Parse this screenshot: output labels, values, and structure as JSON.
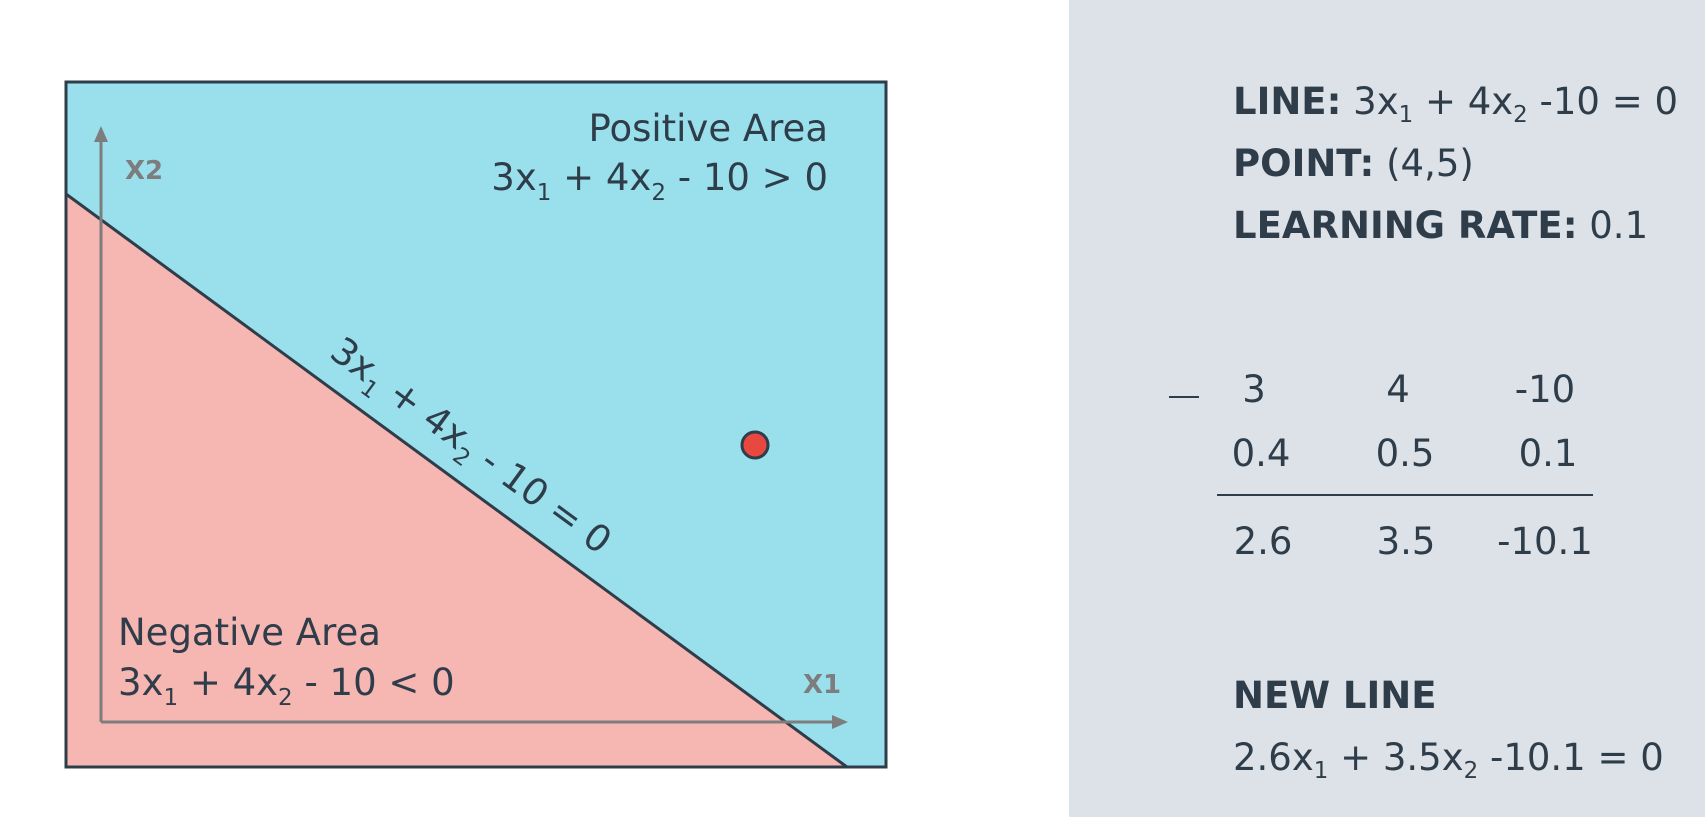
{
  "diagram": {
    "positive_area": {
      "title": "Positive Area",
      "eq_a": "3x",
      "sub1": "1",
      "eq_b": " + 4x",
      "sub2": "2",
      "eq_c": " - 10 > 0"
    },
    "negative_area": {
      "title": "Negative Area",
      "eq_a": "3x",
      "sub1": "1",
      "eq_b": " + 4x",
      "sub2": "2",
      "eq_c": " - 10 < 0"
    },
    "boundary_label": {
      "a": "3x",
      "sub1": "1",
      "b": " + 4x",
      "sub2": "2",
      "c": " - 10 = 0"
    },
    "axis_x_label": "X1",
    "axis_y_label": "X2",
    "colors": {
      "positive": "#9ae0ec",
      "negative": "#f6b6b2",
      "point": "#e8483f",
      "border": "#2e3d49",
      "axis": "#7d7d7d"
    }
  },
  "panel": {
    "line": {
      "label": "LINE:",
      "a": " 3x",
      "sub1": "1",
      "b": " + 4x",
      "sub2": "2",
      "c": " -10 = 0"
    },
    "point": {
      "label": "POINT:",
      "value": " (4,5)"
    },
    "learning_rate": {
      "label": "LEARNING RATE:",
      "value": " 0.1"
    },
    "calc": {
      "operator": "−",
      "row1": [
        "3",
        "4",
        "-10"
      ],
      "row2": [
        "0.4",
        "0.5",
        "0.1"
      ],
      "result": [
        "2.6",
        "3.5",
        "-10.1"
      ]
    },
    "new_line": {
      "label": "NEW LINE",
      "a": "2.6x",
      "sub1": "1",
      "b": " + 3.5x",
      "sub2": "2",
      "c": " -10.1 = 0"
    }
  }
}
